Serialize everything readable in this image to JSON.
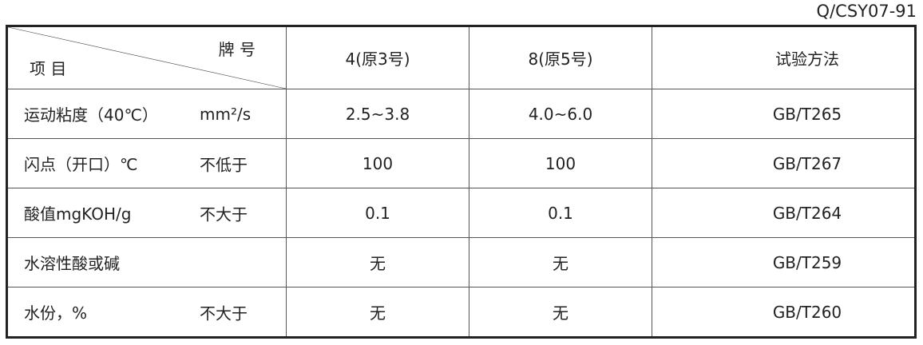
{
  "standard_code": "Q/CSY07-91",
  "header": {
    "item_label": "项 目",
    "brand_label": "牌 号",
    "col_4": "4(原3号)",
    "col_8": "8(原5号)",
    "method": "试验方法"
  },
  "rows": [
    {
      "item": "运动粘度（40℃）",
      "note": "mm²/s",
      "v4": "2.5~3.8",
      "v8": "4.0~6.0",
      "method": "GB/T265"
    },
    {
      "item": "闪点（开口）℃",
      "note": "不低于",
      "v4": "100",
      "v8": "100",
      "method": "GB/T267"
    },
    {
      "item": "酸值mgKOH/g",
      "note": "不大于",
      "v4": "0.1",
      "v8": "0.1",
      "method": "GB/T264"
    },
    {
      "item": "水溶性酸或碱",
      "note": "",
      "v4": "无",
      "v8": "无",
      "method": "GB/T259"
    },
    {
      "item": "水份，%",
      "note": "不大于",
      "v4": "无",
      "v8": "无",
      "method": "GB/T260"
    }
  ]
}
